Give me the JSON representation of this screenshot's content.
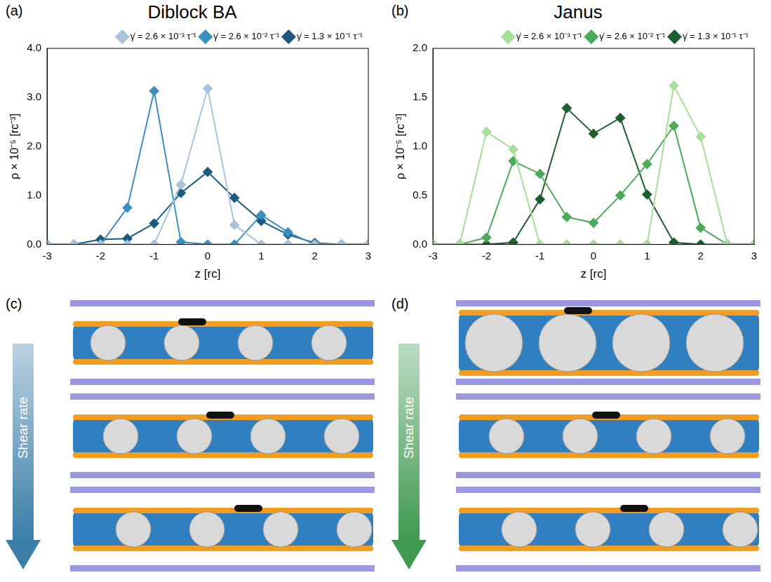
{
  "chart_data": [
    {
      "type": "line",
      "panel": "(a)",
      "title": "Diblock BA",
      "x_label": "z [rc]",
      "y_label": "ρ × 10⁻⁵ [rc⁻³]",
      "x": [
        -3,
        -2.5,
        -2,
        -1.5,
        -1,
        -0.5,
        0,
        0.5,
        1,
        1.5,
        2,
        2.5,
        3
      ],
      "series": [
        {
          "name": "γ̇ = 2.6 × 10⁻³ τ⁻¹",
          "color": "#a9c3dc",
          "marker": "diamond",
          "values": [
            0,
            0,
            0,
            0,
            0,
            1.22,
            3.18,
            0.4,
            0,
            0,
            0,
            0,
            0
          ]
        },
        {
          "name": "γ̇ = 2.6 × 10⁻² τ⁻¹",
          "color": "#3b8ec0",
          "marker": "diamond",
          "values": [
            0,
            0,
            0,
            0.75,
            3.13,
            0.05,
            0,
            0,
            0.6,
            0.25,
            0,
            0,
            0
          ]
        },
        {
          "name": "γ̇ = 1.3 × 10⁻¹ τ⁻¹",
          "color": "#1d5a80",
          "marker": "diamond",
          "values": [
            0,
            0,
            0.1,
            0.12,
            0.43,
            1.05,
            1.48,
            0.95,
            0.48,
            0.2,
            0.03,
            0,
            0
          ]
        }
      ],
      "xlim": [
        -3,
        3
      ],
      "xticks": [
        -3,
        -2,
        -1,
        0,
        1,
        2,
        3
      ],
      "ylim": [
        0,
        4
      ],
      "yticks": [
        {
          "value": 0,
          "label": "0.0"
        },
        {
          "value": 1,
          "label": "1.0"
        },
        {
          "value": 2,
          "label": "2.0"
        },
        {
          "value": 3,
          "label": "3.0"
        },
        {
          "value": 4,
          "label": "4.0"
        }
      ],
      "grid": false,
      "legend": "upper right"
    },
    {
      "type": "line",
      "panel": "(b)",
      "title": "Janus",
      "x_label": "z [rc]",
      "y_label": "ρ × 10⁻⁵ [rc⁻³]",
      "x": [
        -3,
        -2.5,
        -2,
        -1.5,
        -1,
        -0.5,
        0,
        0.5,
        1,
        1.5,
        2,
        2.5,
        3
      ],
      "series": [
        {
          "name": "γ̇ = 2.6 × 10⁻³ τ⁻¹",
          "color": "#a5df98",
          "marker": "diamond",
          "values": [
            0,
            0,
            1.15,
            0.97,
            0,
            0,
            0,
            0,
            0,
            1.62,
            1.1,
            0,
            0
          ]
        },
        {
          "name": "γ̇ = 2.6 × 10⁻² τ⁻¹",
          "color": "#4caa5b",
          "marker": "diamond",
          "values": [
            0,
            0,
            0.07,
            0.85,
            0.72,
            0.28,
            0.22,
            0.5,
            0.82,
            1.21,
            0.17,
            0,
            0
          ]
        },
        {
          "name": "γ̇ = 1.3 × 10⁻¹ τ⁻¹",
          "color": "#1e5d2e",
          "marker": "diamond",
          "values": [
            0,
            0,
            0,
            0.02,
            0.46,
            1.39,
            1.13,
            1.29,
            0.51,
            0.02,
            0,
            0,
            0
          ]
        }
      ],
      "xlim": [
        -3,
        3
      ],
      "xticks": [
        -3,
        -2,
        -1,
        0,
        1,
        2,
        3
      ],
      "ylim": [
        0,
        2
      ],
      "yticks": [
        {
          "value": 0,
          "label": "0.0"
        },
        {
          "value": 0.5,
          "label": "0.5"
        },
        {
          "value": 1,
          "label": "1.0"
        },
        {
          "value": 1.5,
          "label": "1.5"
        },
        {
          "value": 2,
          "label": "2.0"
        }
      ],
      "grid": false,
      "legend": "upper right"
    }
  ],
  "snapshots": [
    {
      "panel": "(c)",
      "arrow_text": "Shear rate",
      "color": "#3b7ea8"
    },
    {
      "panel": "(d)",
      "arrow_text": "Shear rate",
      "color": "#3f9a50"
    }
  ]
}
